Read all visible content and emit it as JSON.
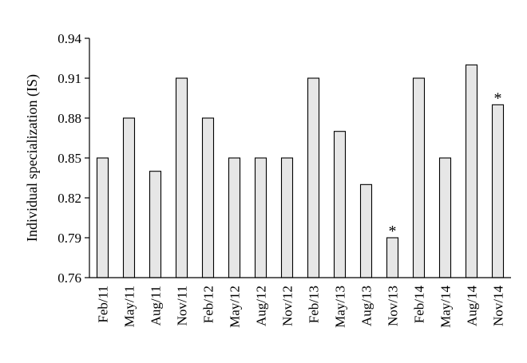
{
  "chart_data": {
    "type": "bar",
    "ylabel": "Individual specialization (IS)",
    "xlabel": "",
    "title": "",
    "ylim": [
      0.76,
      0.94
    ],
    "yticks": [
      "0.76",
      "0.79",
      "0.82",
      "0.85",
      "0.88",
      "0.91",
      "0.94"
    ],
    "categories": [
      "Feb/11",
      "May/11",
      "Aug/11",
      "Nov/11",
      "Feb/12",
      "May/12",
      "Aug/12",
      "Nov/12",
      "Feb/13",
      "May/13",
      "Aug/13",
      "Nov/13",
      "Feb/14",
      "May/14",
      "Aug/14",
      "Nov/14"
    ],
    "values": [
      0.85,
      0.88,
      0.84,
      0.91,
      0.88,
      0.85,
      0.85,
      0.85,
      0.91,
      0.87,
      0.83,
      0.79,
      0.91,
      0.85,
      0.92,
      0.89
    ],
    "annotations": [
      {
        "category": "Nov/13",
        "text": "*"
      },
      {
        "category": "Nov/14",
        "text": "*"
      }
    ],
    "bar_color": "#e6e6e6",
    "grid": false,
    "legend": "none"
  }
}
